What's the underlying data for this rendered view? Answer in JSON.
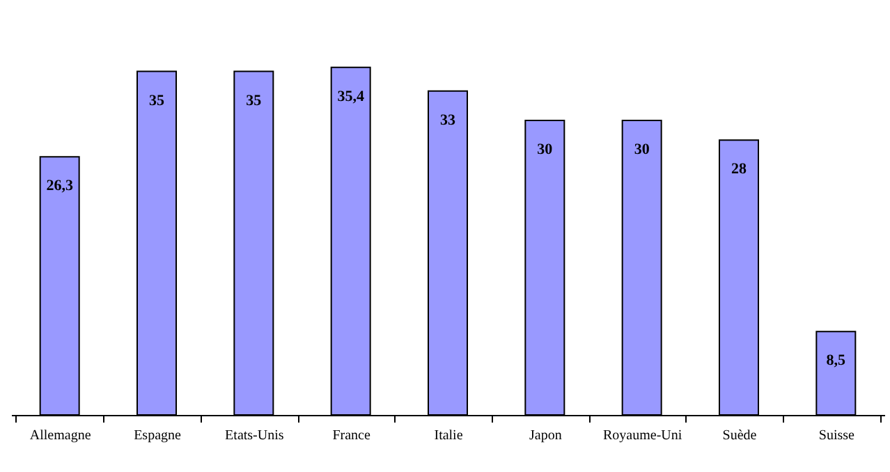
{
  "chart_data": {
    "type": "bar",
    "categories": [
      "Allemagne",
      "Espagne",
      "Etats-Unis",
      "France",
      "Italie",
      "Japon",
      "Royaume-Uni",
      "Suède",
      "Suisse"
    ],
    "values": [
      26.3,
      35,
      35,
      35.4,
      33,
      30,
      30,
      28,
      8.5
    ],
    "value_labels": [
      "26,3",
      "35",
      "35",
      "35,4",
      "33",
      "30",
      "30",
      "28",
      "8,5"
    ],
    "color": "#9999ff",
    "grid": false
  }
}
